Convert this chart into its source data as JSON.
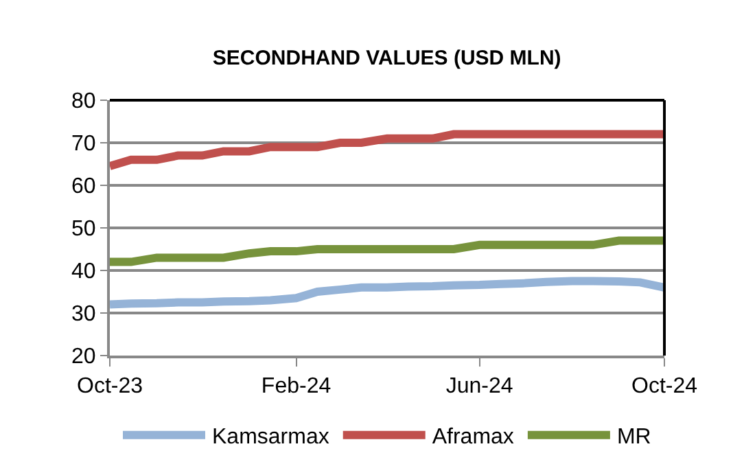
{
  "chart_data": {
    "type": "line",
    "title": "SECONDHAND VALUES (USD MLN)",
    "x": [
      "2023-10-01",
      "2023-10-15",
      "2023-11-01",
      "2023-11-15",
      "2023-12-01",
      "2023-12-15",
      "2024-01-01",
      "2024-01-15",
      "2024-02-01",
      "2024-02-15",
      "2024-03-01",
      "2024-03-15",
      "2024-04-01",
      "2024-04-15",
      "2024-05-01",
      "2024-05-15",
      "2024-06-01",
      "2024-06-15",
      "2024-07-01",
      "2024-07-15",
      "2024-08-01",
      "2024-08-15",
      "2024-09-01",
      "2024-09-15",
      "2024-10-01"
    ],
    "series": [
      {
        "name": "Kamsarmax",
        "color": "#95b3d7",
        "values": [
          32,
          32.2,
          32.3,
          32.5,
          32.5,
          32.7,
          32.8,
          33,
          33.5,
          35,
          35.5,
          36,
          36,
          36.2,
          36.3,
          36.5,
          36.6,
          36.8,
          37,
          37.3,
          37.5,
          37.5,
          37.4,
          37.2,
          36
        ]
      },
      {
        "name": "Aframax",
        "color": "#c0504d",
        "values": [
          64.5,
          66,
          66,
          67,
          67,
          68,
          68,
          69,
          69,
          69,
          70,
          70,
          71,
          71,
          71,
          72,
          72,
          72,
          72,
          72,
          72,
          72,
          72,
          72,
          72
        ]
      },
      {
        "name": "MR",
        "color": "#77933c",
        "values": [
          42,
          42,
          43,
          43,
          43,
          43,
          44,
          44.5,
          44.5,
          45,
          45,
          45,
          45,
          45,
          45,
          45,
          46,
          46,
          46,
          46,
          46,
          46,
          47,
          47,
          47
        ]
      }
    ],
    "xlim": [
      "2023-10-01",
      "2024-10-01"
    ],
    "xticks": [
      {
        "value": "2023-10-01",
        "label": "Oct-23"
      },
      {
        "value": "2024-02-01",
        "label": "Feb-24"
      },
      {
        "value": "2024-06-01",
        "label": "Jun-24"
      },
      {
        "value": "2024-10-01",
        "label": "Oct-24"
      }
    ],
    "ylim": [
      20,
      80
    ],
    "yticks": [
      20,
      30,
      40,
      50,
      60,
      70,
      80
    ],
    "grid": "y",
    "legend": "bottom",
    "marker": "none",
    "line_style": "solid"
  }
}
